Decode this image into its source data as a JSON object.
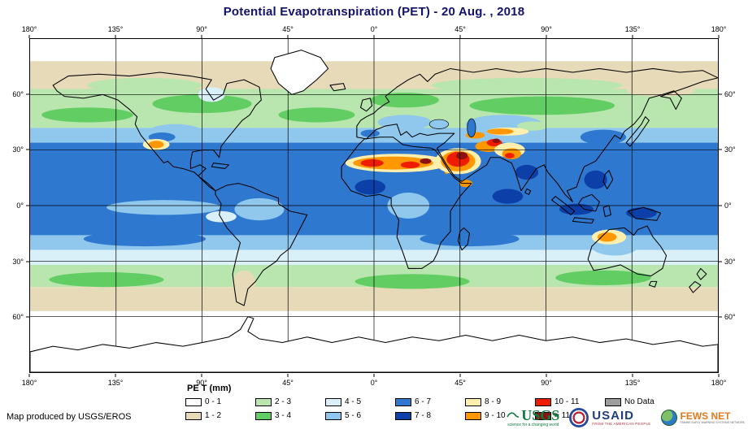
{
  "title": "Potential Evapotranspiration (PET) - 20 Aug. , 2018",
  "axes": {
    "lon_labels": [
      "180°",
      "135°",
      "90°",
      "45°",
      "0°",
      "45°",
      "90°",
      "135°",
      "180°"
    ],
    "lat_labels": [
      "60°",
      "30°",
      "0°",
      "30°",
      "60°"
    ]
  },
  "legend": {
    "title": "PE T (mm)",
    "items": [
      {
        "label": "0 - 1",
        "color": "#ffffff"
      },
      {
        "label": "1 - 2",
        "color": "#e7dab8"
      },
      {
        "label": "2 - 3",
        "color": "#b8e6ae"
      },
      {
        "label": "3 - 4",
        "color": "#62cd62"
      },
      {
        "label": "4 - 5",
        "color": "#d9f0f8"
      },
      {
        "label": "5 - 6",
        "color": "#8fc8ec"
      },
      {
        "label": "6 - 7",
        "color": "#2f78d0"
      },
      {
        "label": "7 - 8",
        "color": "#0c3fa8"
      },
      {
        "label": "8 - 9",
        "color": "#ffefad"
      },
      {
        "label": "9 - 10",
        "color": "#ff9800"
      },
      {
        "label": "10 - 11",
        "color": "#ee1c00"
      },
      {
        "label": "> 11",
        "color": "#8c1212"
      },
      {
        "label": "No Data",
        "color": "#9e9e9e"
      }
    ]
  },
  "footer": {
    "credit": "Map produced by USGS/EROS"
  },
  "logos": {
    "usgs": {
      "name": "USGS",
      "tagline": "science for a changing world"
    },
    "usaid": {
      "name": "USAID",
      "tagline": "FROM THE AMERICAN PEOPLE"
    },
    "fewsnet": {
      "name": "FEWS NET",
      "tagline": "FAMINE EARLY WARNING SYSTEMS NETWORK"
    }
  }
}
